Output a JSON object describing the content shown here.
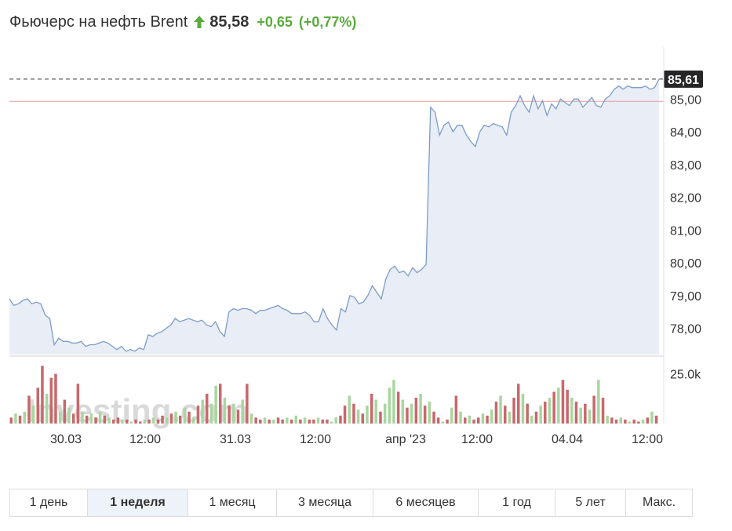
{
  "header": {
    "title": "Фьючерс на нефть Brent",
    "price": "85,58",
    "change_abs": "+0,65",
    "change_pct": "(+0,77%)",
    "up_color": "#5aaa3c"
  },
  "chart_data": {
    "type": "line",
    "ylim": [
      77.2,
      86.3
    ],
    "y_ticks": [
      "85,00",
      "84,00",
      "83,00",
      "82,00",
      "81,00",
      "80,00",
      "79,00",
      "78,00"
    ],
    "x_ticks": [
      "30.03",
      "12:00",
      "31.03",
      "12:00",
      "апр '23",
      "12:00",
      "04.04",
      "12:00"
    ],
    "last_price_label": "85,61",
    "last_price": 85.61,
    "previous_close": 84.93,
    "volume_tick_label": "25.0k",
    "volume_ylim": [
      0,
      30000
    ],
    "watermark": "Investing.com",
    "price_series": [
      78.9,
      78.7,
      78.75,
      78.85,
      78.9,
      78.75,
      78.8,
      78.75,
      78.4,
      78.3,
      77.5,
      77.7,
      77.6,
      77.6,
      77.55,
      77.55,
      77.6,
      77.45,
      77.5,
      77.5,
      77.55,
      77.6,
      77.55,
      77.45,
      77.35,
      77.45,
      77.3,
      77.35,
      77.3,
      77.4,
      77.35,
      77.8,
      77.75,
      77.85,
      77.9,
      78.0,
      78.1,
      78.3,
      78.2,
      78.25,
      78.3,
      78.25,
      78.2,
      78.25,
      78.1,
      78.05,
      78.2,
      77.9,
      77.75,
      78.5,
      78.6,
      78.55,
      78.6,
      78.6,
      78.55,
      78.45,
      78.55,
      78.55,
      78.6,
      78.65,
      78.7,
      78.6,
      78.55,
      78.45,
      78.45,
      78.45,
      78.5,
      78.4,
      78.2,
      78.2,
      78.6,
      78.3,
      78.1,
      77.95,
      78.6,
      78.5,
      79.0,
      78.95,
      78.75,
      78.8,
      79.0,
      79.3,
      79.1,
      78.9,
      79.5,
      79.8,
      79.9,
      79.7,
      79.75,
      79.6,
      79.85,
      79.7,
      79.8,
      79.95,
      84.75,
      84.6,
      83.9,
      84.2,
      84.3,
      84.0,
      84.2,
      84.2,
      83.9,
      83.7,
      83.55,
      84.0,
      84.2,
      84.15,
      84.25,
      84.2,
      84.15,
      83.9,
      84.6,
      84.8,
      85.1,
      84.8,
      84.6,
      85.1,
      84.7,
      84.95,
      84.5,
      84.85,
      84.7,
      85.0,
      84.9,
      84.8,
      85.0,
      85.0,
      84.75,
      84.9,
      85.05,
      84.8,
      84.75,
      85.0,
      85.1,
      85.3,
      85.4,
      85.3,
      85.4,
      85.35,
      85.35,
      85.35,
      85.4,
      85.3,
      85.35,
      85.61
    ],
    "volume_bars": [
      {
        "v": 3000,
        "up": false
      },
      {
        "v": 5000,
        "up": true
      },
      {
        "v": 4000,
        "up": false
      },
      {
        "v": 6000,
        "up": true
      },
      {
        "v": 14000,
        "up": false
      },
      {
        "v": 9000,
        "up": true
      },
      {
        "v": 18000,
        "up": false
      },
      {
        "v": 29000,
        "up": false
      },
      {
        "v": 15000,
        "up": true
      },
      {
        "v": 23000,
        "up": false
      },
      {
        "v": 25000,
        "up": false
      },
      {
        "v": 6000,
        "up": true
      },
      {
        "v": 12000,
        "up": false
      },
      {
        "v": 8000,
        "up": true
      },
      {
        "v": 5000,
        "up": false
      },
      {
        "v": 20000,
        "up": false
      },
      {
        "v": 6000,
        "up": true
      },
      {
        "v": 4000,
        "up": false
      },
      {
        "v": 5000,
        "up": true
      },
      {
        "v": 3000,
        "up": false
      },
      {
        "v": 6000,
        "up": true
      },
      {
        "v": 4000,
        "up": false
      },
      {
        "v": 3000,
        "up": true
      },
      {
        "v": 2000,
        "up": false
      },
      {
        "v": 3000,
        "up": false
      },
      {
        "v": 2000,
        "up": true
      },
      {
        "v": 2000,
        "up": false
      },
      {
        "v": 1000,
        "up": true
      },
      {
        "v": 2000,
        "up": false
      },
      {
        "v": 1000,
        "up": false
      },
      {
        "v": 2000,
        "up": true
      },
      {
        "v": 2000,
        "up": false
      },
      {
        "v": 3000,
        "up": true
      },
      {
        "v": 2000,
        "up": false
      },
      {
        "v": 4000,
        "up": false
      },
      {
        "v": 3000,
        "up": true
      },
      {
        "v": 5000,
        "up": false
      },
      {
        "v": 6000,
        "up": true
      },
      {
        "v": 4000,
        "up": false
      },
      {
        "v": 8000,
        "up": true
      },
      {
        "v": 6000,
        "up": false
      },
      {
        "v": 3000,
        "up": true
      },
      {
        "v": 9000,
        "up": false
      },
      {
        "v": 12000,
        "up": true
      },
      {
        "v": 15000,
        "up": false
      },
      {
        "v": 10000,
        "up": true
      },
      {
        "v": 19000,
        "up": true
      },
      {
        "v": 20000,
        "up": false
      },
      {
        "v": 13000,
        "up": true
      },
      {
        "v": 9000,
        "up": false
      },
      {
        "v": 10000,
        "up": true
      },
      {
        "v": 7000,
        "up": false
      },
      {
        "v": 12000,
        "up": true
      },
      {
        "v": 20000,
        "up": false
      },
      {
        "v": 5000,
        "up": true
      },
      {
        "v": 3000,
        "up": false
      },
      {
        "v": 2000,
        "up": false
      },
      {
        "v": 3000,
        "up": true
      },
      {
        "v": 2000,
        "up": false
      },
      {
        "v": 2000,
        "up": true
      },
      {
        "v": 3000,
        "up": false
      },
      {
        "v": 2000,
        "up": false
      },
      {
        "v": 3000,
        "up": true
      },
      {
        "v": 2000,
        "up": false
      },
      {
        "v": 4000,
        "up": true
      },
      {
        "v": 2000,
        "up": false
      },
      {
        "v": 3000,
        "up": true
      },
      {
        "v": 2000,
        "up": false
      },
      {
        "v": 2000,
        "up": false
      },
      {
        "v": 3000,
        "up": true
      },
      {
        "v": 2000,
        "up": false
      },
      {
        "v": 2000,
        "up": false
      },
      {
        "v": 1000,
        "up": true
      },
      {
        "v": 3000,
        "up": true
      },
      {
        "v": 4000,
        "up": false
      },
      {
        "v": 9000,
        "up": false
      },
      {
        "v": 14000,
        "up": true
      },
      {
        "v": 10000,
        "up": false
      },
      {
        "v": 7000,
        "up": true
      },
      {
        "v": 5000,
        "up": false
      },
      {
        "v": 9000,
        "up": true
      },
      {
        "v": 15000,
        "up": false
      },
      {
        "v": 12000,
        "up": true
      },
      {
        "v": 6000,
        "up": false
      },
      {
        "v": 10000,
        "up": true
      },
      {
        "v": 18000,
        "up": true
      },
      {
        "v": 22000,
        "up": true
      },
      {
        "v": 16000,
        "up": false
      },
      {
        "v": 12000,
        "up": true
      },
      {
        "v": 8000,
        "up": false
      },
      {
        "v": 10000,
        "up": true
      },
      {
        "v": 13000,
        "up": false
      },
      {
        "v": 15000,
        "up": true
      },
      {
        "v": 9000,
        "up": false
      },
      {
        "v": 11000,
        "up": true
      },
      {
        "v": 6000,
        "up": false
      },
      {
        "v": 3000,
        "up": false
      },
      {
        "v": 1000,
        "up": true
      },
      {
        "v": 2000,
        "up": false
      },
      {
        "v": 8000,
        "up": true
      },
      {
        "v": 14000,
        "up": false
      },
      {
        "v": 6000,
        "up": true
      },
      {
        "v": 3000,
        "up": false
      },
      {
        "v": 4000,
        "up": true
      },
      {
        "v": 2000,
        "up": false
      },
      {
        "v": 3000,
        "up": false
      },
      {
        "v": 5000,
        "up": true
      },
      {
        "v": 4000,
        "up": false
      },
      {
        "v": 7000,
        "up": true
      },
      {
        "v": 11000,
        "up": false
      },
      {
        "v": 14000,
        "up": true
      },
      {
        "v": 9000,
        "up": false
      },
      {
        "v": 6000,
        "up": true
      },
      {
        "v": 13000,
        "up": false
      },
      {
        "v": 20000,
        "up": false
      },
      {
        "v": 15000,
        "up": true
      },
      {
        "v": 10000,
        "up": false
      },
      {
        "v": 4000,
        "up": true
      },
      {
        "v": 6000,
        "up": false
      },
      {
        "v": 9000,
        "up": true
      },
      {
        "v": 11000,
        "up": false
      },
      {
        "v": 13000,
        "up": true
      },
      {
        "v": 16000,
        "up": false
      },
      {
        "v": 18000,
        "up": true
      },
      {
        "v": 22000,
        "up": false
      },
      {
        "v": 17000,
        "up": false
      },
      {
        "v": 13000,
        "up": true
      },
      {
        "v": 11000,
        "up": false
      },
      {
        "v": 8000,
        "up": true
      },
      {
        "v": 10000,
        "up": false
      },
      {
        "v": 7000,
        "up": true
      },
      {
        "v": 14000,
        "up": false
      },
      {
        "v": 22000,
        "up": true
      },
      {
        "v": 13000,
        "up": false
      },
      {
        "v": 4000,
        "up": true
      },
      {
        "v": 3000,
        "up": false
      },
      {
        "v": 2000,
        "up": false
      },
      {
        "v": 3000,
        "up": true
      },
      {
        "v": 2000,
        "up": false
      },
      {
        "v": 1000,
        "up": true
      },
      {
        "v": 2000,
        "up": false
      },
      {
        "v": 1000,
        "up": false
      },
      {
        "v": 2000,
        "up": true
      },
      {
        "v": 3000,
        "up": false
      },
      {
        "v": 6000,
        "up": true
      },
      {
        "v": 4000,
        "up": false
      }
    ],
    "colors": {
      "line": "#7b9cc9",
      "fill": "#e9edf6",
      "prev_close_line": "#e89a9a",
      "volume_up": "#a9d6a0",
      "volume_down": "#c8686b",
      "last_label_bg": "#262626"
    }
  },
  "periods": [
    {
      "label": "1 день",
      "active": false
    },
    {
      "label": "1 неделя",
      "active": true
    },
    {
      "label": "1 месяц",
      "active": false
    },
    {
      "label": "3 месяца",
      "active": false
    },
    {
      "label": "6 месяцев",
      "active": false
    },
    {
      "label": "1 год",
      "active": false
    },
    {
      "label": "5 лет",
      "active": false
    },
    {
      "label": "Макс.",
      "active": false
    }
  ]
}
